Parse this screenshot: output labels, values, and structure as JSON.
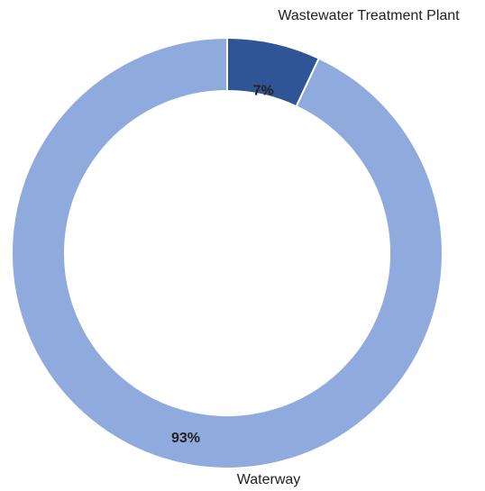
{
  "chart_data": {
    "type": "donut",
    "categories": [
      "Wastewater Treatment Plant",
      "Waterway"
    ],
    "values": [
      7,
      93
    ],
    "value_labels": [
      "7%",
      "93%"
    ],
    "colors": [
      "#2f5597",
      "#8faadc"
    ]
  }
}
